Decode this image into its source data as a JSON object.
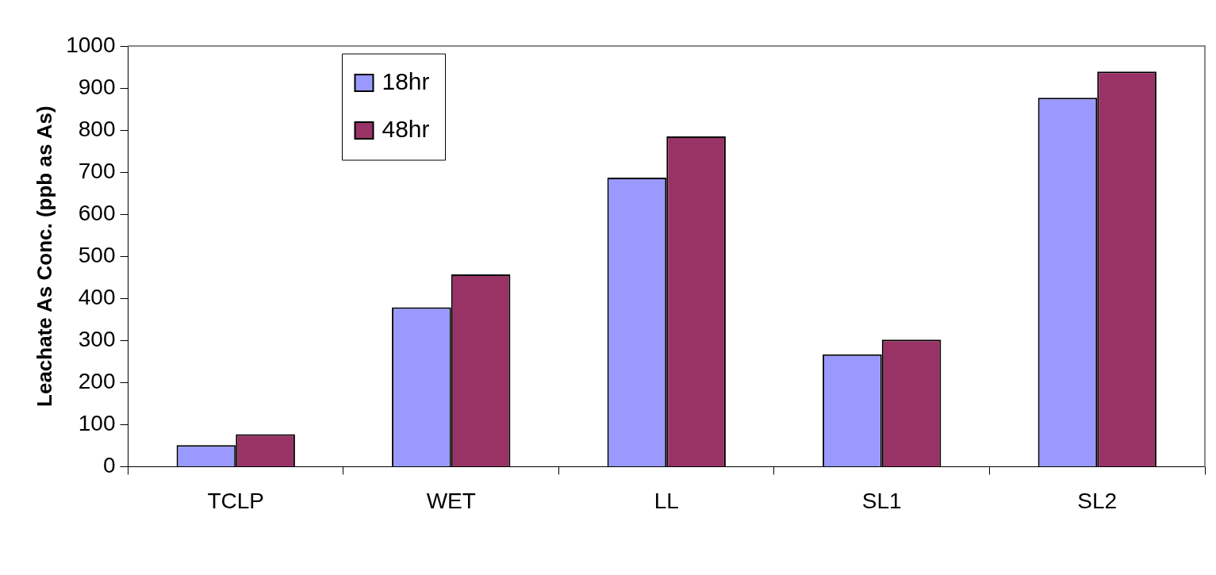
{
  "chart_data": {
    "type": "bar",
    "ylabel": "Leachate As Conc. (ppb as As)",
    "categories": [
      "TCLP",
      "WET",
      "LL",
      "SL1",
      "SL2"
    ],
    "series": [
      {
        "name": "18hr",
        "color": "#9999ff",
        "values": [
          51,
          379,
          687,
          267,
          877
        ]
      },
      {
        "name": "48hr",
        "color": "#993366",
        "values": [
          77,
          457,
          785,
          302,
          939
        ]
      }
    ],
    "ylim": [
      0,
      1000
    ],
    "yticks": [
      0,
      100,
      200,
      300,
      400,
      500,
      600,
      700,
      800,
      900,
      1000
    ],
    "grid": false,
    "legend": "top left"
  }
}
